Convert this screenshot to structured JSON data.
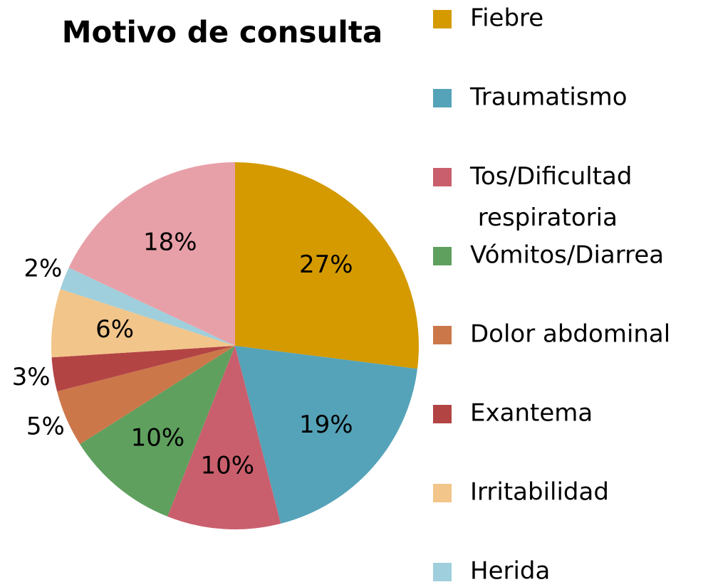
{
  "chart_data": {
    "type": "pie",
    "title": "Motivo de consulta",
    "categories": [
      "Fiebre",
      "Traumatismo",
      "Tos/Dificultad respiratoria",
      "Vómitos/Diarrea",
      "Dolor abdominal",
      "Exantema",
      "Irritabilidad",
      "Herida",
      null
    ],
    "values": [
      27,
      19,
      10,
      10,
      5,
      3,
      6,
      2,
      18
    ],
    "value_labels": [
      "27%",
      "19%",
      "10%",
      "10%",
      "5%",
      "3%",
      "6%",
      "2%",
      "18%"
    ],
    "colors": [
      "#d49a00",
      "#55a3b8",
      "#c95f6d",
      "#5fa05e",
      "#cc774a",
      "#b34444",
      "#f2c58a",
      "#9fcfdc",
      "#e8a0a8"
    ],
    "legend": "right"
  }
}
